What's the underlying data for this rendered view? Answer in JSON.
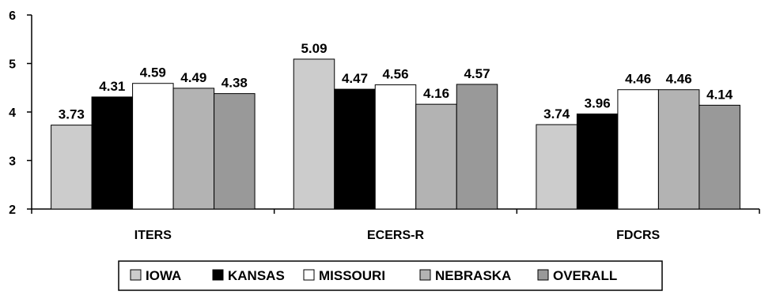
{
  "chart_data": {
    "type": "bar",
    "categories": [
      "ITERS",
      "ECERS-R",
      "FDCRS"
    ],
    "ylim": [
      2,
      6
    ],
    "yticks": [
      "2",
      "3",
      "4",
      "5",
      "6"
    ],
    "grid": false,
    "legend_position": "bottom",
    "series": [
      {
        "name": "IOWA",
        "color": "#cccccc",
        "values": [
          3.73,
          5.09,
          3.74
        ],
        "labels": [
          "3.73",
          "5.09",
          "3.74"
        ]
      },
      {
        "name": "KANSAS",
        "color": "#000000",
        "values": [
          4.31,
          4.47,
          3.96
        ],
        "labels": [
          "4.31",
          "4.47",
          "3.96"
        ]
      },
      {
        "name": "MISSOURI",
        "color": "#ffffff",
        "values": [
          4.59,
          4.56,
          4.46
        ],
        "labels": [
          "4.59",
          "4.56",
          "4.46"
        ]
      },
      {
        "name": "NEBRASKA",
        "color": "#b3b3b3",
        "values": [
          4.49,
          4.16,
          4.46
        ],
        "labels": [
          "4.49",
          "4.16",
          "4.46"
        ]
      },
      {
        "name": "OVERALL",
        "color": "#999999",
        "values": [
          4.38,
          4.57,
          4.14
        ],
        "labels": [
          "4.38",
          "4.57",
          "4.14"
        ]
      }
    ]
  }
}
